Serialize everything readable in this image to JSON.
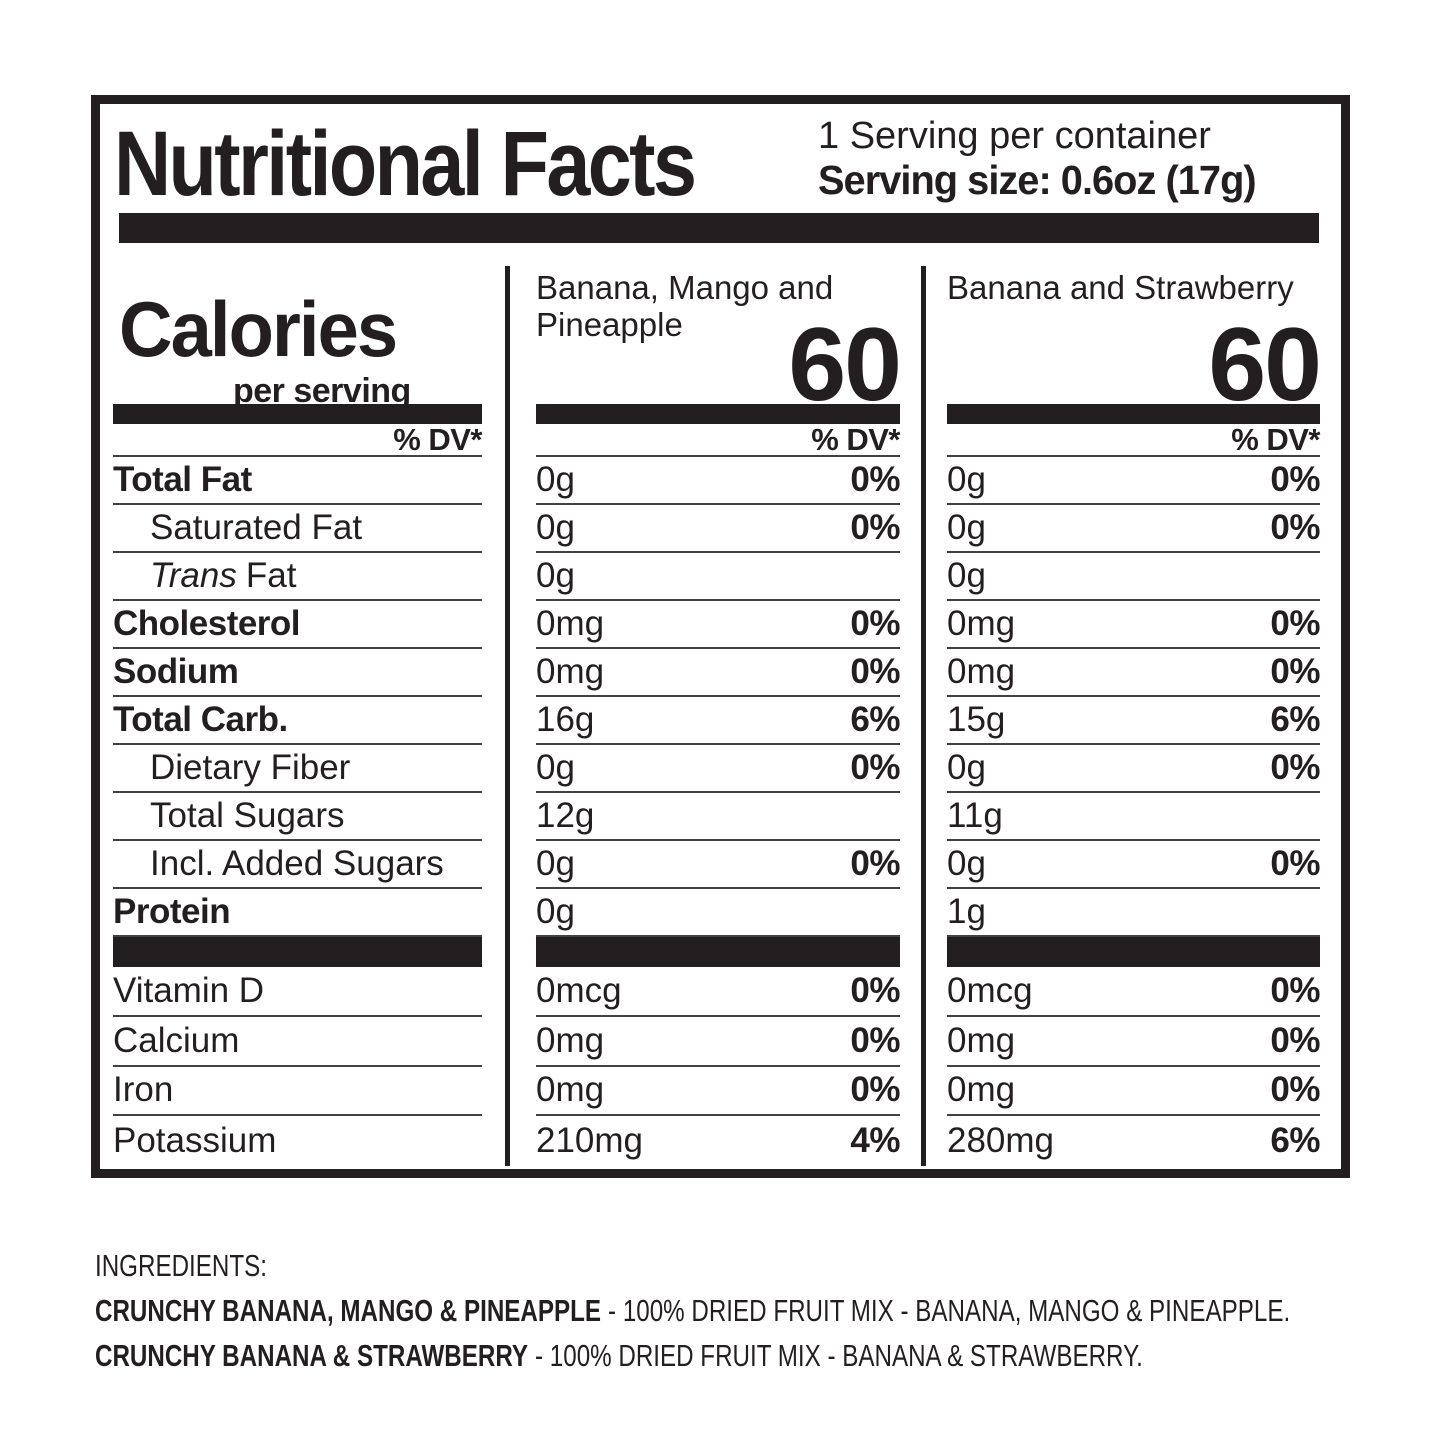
{
  "label": {
    "title": "Nutritional Facts",
    "servings_per_container": "1 Serving per container",
    "serving_size": "Serving size: 0.6oz (17g)",
    "calories_label": "Calories",
    "calories_sublabel": "per serving",
    "dv_header": "% DV*",
    "products": [
      {
        "name": "Banana, Mango and Pineapple",
        "calories": "60"
      },
      {
        "name": "Banana and Strawberry",
        "calories": "60"
      }
    ],
    "nutrients": [
      {
        "label": "Total Fat",
        "style": "bold",
        "values": [
          {
            "amount": "0g",
            "dv": "0%"
          },
          {
            "amount": "0g",
            "dv": "0%"
          }
        ]
      },
      {
        "label": "Saturated Fat",
        "style": "indent",
        "values": [
          {
            "amount": "0g",
            "dv": "0%"
          },
          {
            "amount": "0g",
            "dv": "0%"
          }
        ]
      },
      {
        "label_italic": "Trans",
        "label": "Fat",
        "style": "indent",
        "values": [
          {
            "amount": "0g",
            "dv": ""
          },
          {
            "amount": "0g",
            "dv": ""
          }
        ]
      },
      {
        "label": "Cholesterol",
        "style": "bold",
        "values": [
          {
            "amount": "0mg",
            "dv": "0%"
          },
          {
            "amount": "0mg",
            "dv": "0%"
          }
        ]
      },
      {
        "label": "Sodium",
        "style": "bold",
        "values": [
          {
            "amount": "0mg",
            "dv": "0%"
          },
          {
            "amount": "0mg",
            "dv": "0%"
          }
        ]
      },
      {
        "label": "Total Carb.",
        "style": "bold",
        "values": [
          {
            "amount": "16g",
            "dv": "6%"
          },
          {
            "amount": "15g",
            "dv": "6%"
          }
        ]
      },
      {
        "label": "Dietary Fiber",
        "style": "indent",
        "values": [
          {
            "amount": "0g",
            "dv": "0%"
          },
          {
            "amount": "0g",
            "dv": "0%"
          }
        ]
      },
      {
        "label": "Total Sugars",
        "style": "indent",
        "values": [
          {
            "amount": "12g",
            "dv": ""
          },
          {
            "amount": "11g",
            "dv": ""
          }
        ]
      },
      {
        "label": "Incl. Added Sugars",
        "style": "indent",
        "values": [
          {
            "amount": "0g",
            "dv": "0%"
          },
          {
            "amount": "0g",
            "dv": "0%"
          }
        ]
      },
      {
        "label": "Protein",
        "style": "bold",
        "values": [
          {
            "amount": "0g",
            "dv": ""
          },
          {
            "amount": "1g",
            "dv": ""
          }
        ]
      }
    ],
    "vitamins": [
      {
        "label": "Vitamin D",
        "values": [
          {
            "amount": "0mcg",
            "dv": "0%"
          },
          {
            "amount": "0mcg",
            "dv": "0%"
          }
        ]
      },
      {
        "label": "Calcium",
        "values": [
          {
            "amount": "0mg",
            "dv": "0%"
          },
          {
            "amount": "0mg",
            "dv": "0%"
          }
        ]
      },
      {
        "label": "Iron",
        "values": [
          {
            "amount": "0mg",
            "dv": "0%"
          },
          {
            "amount": "0mg",
            "dv": "0%"
          }
        ]
      },
      {
        "label": "Potassium",
        "values": [
          {
            "amount": "210mg",
            "dv": "4%"
          },
          {
            "amount": "280mg",
            "dv": "6%"
          }
        ]
      }
    ]
  },
  "ingredients": {
    "heading": "INGREDIENTS:",
    "items": [
      {
        "name": "CRUNCHY BANANA, MANGO & PINEAPPLE",
        "description": "- 100% DRIED FRUIT MIX - BANANA, MANGO & PINEAPPLE."
      },
      {
        "name": "CRUNCHY BANANA & STRAWBERRY",
        "description": "- 100% DRIED FRUIT MIX - BANANA & STRAWBERRY."
      }
    ]
  }
}
